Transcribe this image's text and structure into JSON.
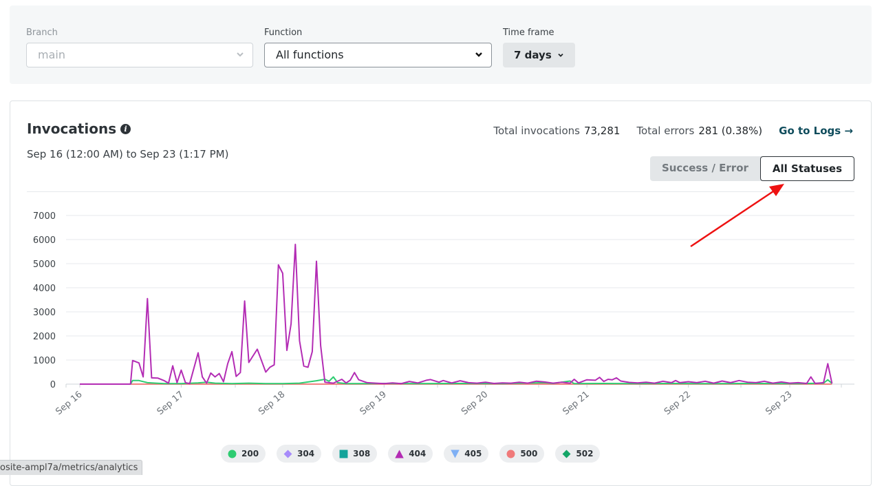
{
  "filters": {
    "branch": {
      "label": "Branch",
      "value": "main"
    },
    "function": {
      "label": "Function",
      "value": "All functions"
    },
    "timeframe": {
      "label": "Time frame",
      "value": "7 days"
    }
  },
  "card": {
    "title": "Invocations",
    "date_range": "Sep 16 (12:00 AM) to Sep 23 (1:17 PM)",
    "total_invocations_label": "Total invocations",
    "total_invocations_value": "73,281",
    "total_errors_label": "Total errors",
    "total_errors_value": "281 (0.38%)",
    "logs_link": "Go to Logs →",
    "toggle": {
      "option_a": "Success / Error",
      "option_b": "All Statuses",
      "active": "All Statuses"
    }
  },
  "chart_data": {
    "type": "line",
    "y_ticks": [
      "0",
      "1000",
      "2000",
      "3000",
      "4000",
      "5000",
      "6000",
      "7000"
    ],
    "ylim": [
      0,
      7000
    ],
    "x_ticks": [
      "Sep 16",
      "Sep 17",
      "Sep 18",
      "Sep 19",
      "Sep 20",
      "Sep 21",
      "Sep 22",
      "Sep 23"
    ],
    "x_tick_hours": [
      0,
      24,
      48,
      72,
      96,
      120,
      144,
      168
    ],
    "x_range_hours": [
      0,
      181
    ],
    "series": [
      {
        "name": "404",
        "color": "#b32cb4",
        "points": [
          [
            0,
            0
          ],
          [
            12,
            0
          ],
          [
            12.5,
            980
          ],
          [
            14,
            880
          ],
          [
            15,
            300
          ],
          [
            16,
            3550
          ],
          [
            17,
            260
          ],
          [
            18.5,
            250
          ],
          [
            20,
            140
          ],
          [
            21,
            40
          ],
          [
            22,
            760
          ],
          [
            23,
            60
          ],
          [
            24,
            580
          ],
          [
            25,
            60
          ],
          [
            26,
            20
          ],
          [
            28,
            1300
          ],
          [
            29,
            300
          ],
          [
            30,
            40
          ],
          [
            31,
            460
          ],
          [
            32,
            300
          ],
          [
            33,
            440
          ],
          [
            34,
            100
          ],
          [
            35,
            850
          ],
          [
            36,
            1350
          ],
          [
            37,
            320
          ],
          [
            38,
            480
          ],
          [
            39,
            3450
          ],
          [
            40,
            900
          ],
          [
            42,
            1450
          ],
          [
            44,
            500
          ],
          [
            45,
            700
          ],
          [
            46,
            800
          ],
          [
            47,
            4950
          ],
          [
            48,
            4600
          ],
          [
            49,
            1400
          ],
          [
            50,
            2500
          ],
          [
            51,
            5800
          ],
          [
            52,
            1800
          ],
          [
            53,
            750
          ],
          [
            54,
            700
          ],
          [
            55,
            1350
          ],
          [
            56,
            5100
          ],
          [
            57,
            1600
          ],
          [
            58,
            80
          ],
          [
            60,
            40
          ],
          [
            62,
            200
          ],
          [
            63,
            50
          ],
          [
            64,
            160
          ],
          [
            65,
            480
          ],
          [
            66,
            180
          ],
          [
            68,
            60
          ],
          [
            70,
            40
          ],
          [
            72,
            20
          ],
          [
            74,
            50
          ],
          [
            76,
            20
          ],
          [
            78,
            110
          ],
          [
            80,
            50
          ],
          [
            82,
            160
          ],
          [
            83,
            190
          ],
          [
            85,
            80
          ],
          [
            86,
            150
          ],
          [
            88,
            50
          ],
          [
            90,
            140
          ],
          [
            92,
            60
          ],
          [
            94,
            40
          ],
          [
            96,
            80
          ],
          [
            98,
            30
          ],
          [
            100,
            50
          ],
          [
            102,
            40
          ],
          [
            104,
            80
          ],
          [
            106,
            40
          ],
          [
            108,
            120
          ],
          [
            110,
            90
          ],
          [
            112,
            40
          ],
          [
            114,
            80
          ],
          [
            116,
            40
          ],
          [
            117,
            200
          ],
          [
            118,
            50
          ],
          [
            120,
            180
          ],
          [
            122,
            160
          ],
          [
            123,
            280
          ],
          [
            124,
            110
          ],
          [
            125,
            200
          ],
          [
            126,
            180
          ],
          [
            127,
            260
          ],
          [
            128,
            130
          ],
          [
            130,
            70
          ],
          [
            132,
            50
          ],
          [
            134,
            80
          ],
          [
            136,
            40
          ],
          [
            138,
            120
          ],
          [
            140,
            60
          ],
          [
            141,
            150
          ],
          [
            142,
            60
          ],
          [
            144,
            100
          ],
          [
            146,
            60
          ],
          [
            148,
            120
          ],
          [
            150,
            40
          ],
          [
            152,
            130
          ],
          [
            154,
            60
          ],
          [
            156,
            150
          ],
          [
            158,
            80
          ],
          [
            160,
            60
          ],
          [
            162,
            120
          ],
          [
            164,
            40
          ],
          [
            166,
            90
          ],
          [
            168,
            40
          ],
          [
            170,
            60
          ],
          [
            172,
            30
          ],
          [
            173,
            300
          ],
          [
            174,
            30
          ],
          [
            176,
            60
          ],
          [
            177,
            850
          ],
          [
            178,
            30
          ]
        ]
      },
      {
        "name": "200",
        "color": "#2ecc71",
        "points": [
          [
            0,
            0
          ],
          [
            12,
            0
          ],
          [
            12.5,
            150
          ],
          [
            14,
            150
          ],
          [
            16,
            60
          ],
          [
            18,
            40
          ],
          [
            20,
            20
          ],
          [
            24,
            20
          ],
          [
            28,
            50
          ],
          [
            30,
            80
          ],
          [
            32,
            40
          ],
          [
            36,
            20
          ],
          [
            40,
            40
          ],
          [
            44,
            20
          ],
          [
            48,
            20
          ],
          [
            52,
            40
          ],
          [
            56,
            140
          ],
          [
            58,
            200
          ],
          [
            59,
            120
          ],
          [
            60,
            300
          ],
          [
            61,
            60
          ],
          [
            63,
            20
          ],
          [
            68,
            20
          ],
          [
            72,
            30
          ],
          [
            80,
            20
          ],
          [
            90,
            30
          ],
          [
            100,
            20
          ],
          [
            110,
            60
          ],
          [
            112,
            30
          ],
          [
            116,
            130
          ],
          [
            117,
            20
          ],
          [
            124,
            30
          ],
          [
            132,
            20
          ],
          [
            140,
            30
          ],
          [
            150,
            20
          ],
          [
            160,
            30
          ],
          [
            170,
            20
          ],
          [
            176,
            40
          ],
          [
            177,
            180
          ],
          [
            178,
            30
          ]
        ]
      },
      {
        "name": "500",
        "color": "#f08080",
        "points": [
          [
            0,
            0
          ],
          [
            178,
            0
          ]
        ]
      }
    ]
  },
  "legend": [
    {
      "label": "200",
      "color": "#2ecc71",
      "shape": "circle"
    },
    {
      "label": "304",
      "color": "#a78bfa",
      "shape": "diamond"
    },
    {
      "label": "308",
      "color": "#14a39a",
      "shape": "square"
    },
    {
      "label": "404",
      "color": "#b32cb4",
      "shape": "triangle-up"
    },
    {
      "label": "405",
      "color": "#7fb0f5",
      "shape": "triangle-down"
    },
    {
      "label": "500",
      "color": "#f07a7a",
      "shape": "circle"
    },
    {
      "label": "502",
      "color": "#13a567",
      "shape": "diamond"
    }
  ],
  "status_bar": {
    "url": "osite-ampl7a/metrics/analytics"
  },
  "annotation": {
    "arrow_color": "#ee1111"
  }
}
